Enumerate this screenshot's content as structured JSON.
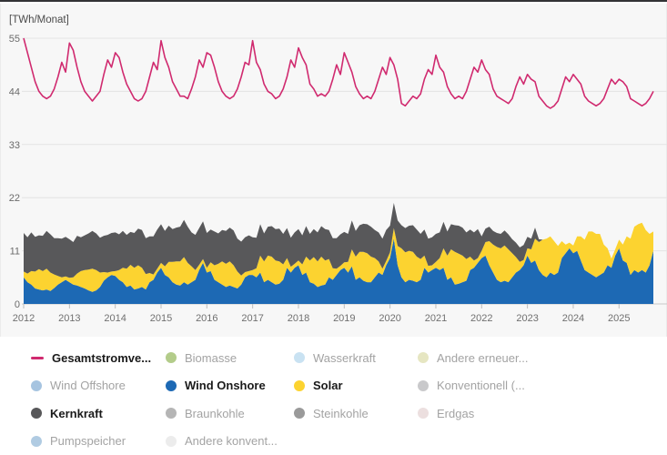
{
  "chart_data": {
    "type": "line+area",
    "unit_label": "[TWh/Monat]",
    "x_monthly_start": "2012-01",
    "x_tick_labels": [
      "2012",
      "2013",
      "2014",
      "2015",
      "2016",
      "2017",
      "2018",
      "2019",
      "2020",
      "2021",
      "2022",
      "2023",
      "2024",
      "2025"
    ],
    "yticks": [
      0,
      11,
      22,
      33,
      44,
      55
    ],
    "ylim": [
      0,
      55
    ],
    "grid": true,
    "legend_position": "bottom",
    "stack_series": [
      {
        "name": "Wind Onshore",
        "color": "#1d69b4",
        "values": [
          5.5,
          4.5,
          4.0,
          3.2,
          3.0,
          2.8,
          3.0,
          2.7,
          3.3,
          4.0,
          4.5,
          5.0,
          4.5,
          4.0,
          3.8,
          3.5,
          3.2,
          2.8,
          2.5,
          2.8,
          3.5,
          4.8,
          5.5,
          6.0,
          5.8,
          5.0,
          4.5,
          3.5,
          3.8,
          3.0,
          3.2,
          3.5,
          3.0,
          4.5,
          5.0,
          6.5,
          7.5,
          6.0,
          5.5,
          4.5,
          4.0,
          3.8,
          4.5,
          4.0,
          4.5,
          5.0,
          7.0,
          8.5,
          6.5,
          6.8,
          5.0,
          4.5,
          4.0,
          3.5,
          3.8,
          3.5,
          3.2,
          4.0,
          5.5,
          6.0,
          6.0,
          5.5,
          6.5,
          4.5,
          5.0,
          4.5,
          4.0,
          4.2,
          5.0,
          7.5,
          6.5,
          7.5,
          8.0,
          6.0,
          6.5,
          4.5,
          4.2,
          3.5,
          3.8,
          4.0,
          5.5,
          5.0,
          6.0,
          7.0,
          7.5,
          6.5,
          7.8,
          5.0,
          5.5,
          4.8,
          4.5,
          4.5,
          5.5,
          6.5,
          6.0,
          8.0,
          9.5,
          13.5,
          8.0,
          5.5,
          4.5,
          5.0,
          4.8,
          4.5,
          5.0,
          7.5,
          6.5,
          7.0,
          7.5,
          7.0,
          7.5,
          5.0,
          5.5,
          4.0,
          4.2,
          4.5,
          4.8,
          7.0,
          7.5,
          8.5,
          9.5,
          10.0,
          8.0,
          6.5,
          5.0,
          4.5,
          4.8,
          4.5,
          5.5,
          6.5,
          7.0,
          8.0,
          10.0,
          8.5,
          9.0,
          7.0,
          6.0,
          5.5,
          6.5,
          6.0,
          6.5,
          9.5,
          10.5,
          11.5,
          10.5,
          11.0,
          9.0,
          7.0,
          6.5,
          6.0,
          5.5,
          6.0,
          6.5,
          8.0,
          7.5,
          10.0,
          11.5,
          9.0,
          8.5,
          6.0,
          7.0,
          6.5,
          7.0,
          6.5,
          8.0,
          11.0
        ]
      },
      {
        "name": "Solar",
        "color": "#fcd330",
        "values": [
          1.2,
          1.8,
          2.8,
          3.5,
          4.2,
          4.0,
          4.3,
          3.8,
          2.8,
          1.8,
          1.0,
          0.7,
          0.9,
          1.5,
          2.5,
          3.3,
          3.8,
          4.3,
          4.8,
          4.2,
          3.0,
          1.8,
          1.0,
          0.7,
          1.0,
          2.0,
          3.0,
          3.8,
          4.3,
          4.5,
          4.8,
          4.0,
          3.2,
          1.9,
          1.1,
          0.8,
          1.0,
          1.8,
          3.2,
          4.2,
          4.8,
          5.0,
          5.2,
          4.5,
          3.3,
          2.0,
          1.1,
          0.8,
          1.0,
          1.8,
          3.0,
          3.8,
          4.8,
          4.8,
          5.0,
          4.5,
          3.5,
          1.9,
          1.1,
          0.8,
          1.0,
          1.9,
          3.5,
          4.3,
          5.0,
          5.3,
          5.0,
          4.6,
          3.2,
          2.0,
          1.2,
          0.8,
          1.0,
          2.2,
          3.3,
          4.5,
          5.5,
          5.3,
          6.0,
          5.0,
          3.8,
          2.4,
          1.3,
          0.9,
          1.1,
          2.2,
          3.5,
          4.8,
          5.3,
          6.0,
          6.0,
          5.3,
          4.0,
          2.3,
          1.3,
          0.9,
          1.2,
          2.2,
          4.0,
          6.0,
          6.2,
          6.0,
          6.0,
          5.3,
          4.3,
          2.5,
          1.4,
          1.0,
          1.2,
          2.5,
          4.0,
          5.0,
          5.8,
          6.8,
          6.2,
          5.5,
          4.5,
          2.8,
          1.5,
          1.0,
          1.5,
          2.8,
          5.0,
          5.8,
          6.8,
          7.0,
          7.3,
          6.8,
          5.0,
          3.2,
          1.7,
          1.1,
          1.5,
          2.8,
          4.5,
          5.8,
          7.3,
          8.0,
          7.5,
          7.0,
          5.5,
          3.5,
          1.8,
          1.2,
          1.6,
          3.0,
          5.0,
          6.3,
          8.5,
          9.0,
          9.0,
          8.5,
          5.8,
          3.5,
          1.9,
          1.3,
          1.8,
          3.3,
          5.5,
          7.5,
          9.0,
          10.0,
          9.8,
          8.8,
          6.5,
          4.0
        ]
      },
      {
        "name": "Kernkraft",
        "color": "#58585a",
        "values": [
          8.0,
          7.5,
          8.0,
          7.2,
          7.0,
          7.3,
          7.8,
          7.9,
          7.5,
          7.8,
          8.0,
          8.2,
          8.0,
          7.3,
          7.8,
          7.0,
          7.2,
          7.5,
          7.8,
          7.6,
          7.2,
          7.5,
          7.8,
          8.0,
          8.0,
          7.4,
          7.6,
          7.0,
          6.8,
          7.2,
          7.6,
          7.8,
          7.4,
          7.6,
          7.9,
          8.1,
          8.0,
          7.3,
          7.5,
          6.8,
          7.0,
          7.2,
          7.7,
          7.5,
          7.0,
          7.3,
          7.6,
          7.8,
          7.2,
          6.8,
          7.0,
          6.3,
          6.5,
          6.8,
          7.0,
          7.2,
          6.8,
          7.0,
          7.2,
          7.4,
          6.8,
          6.3,
          6.5,
          5.8,
          6.0,
          6.3,
          6.5,
          6.8,
          6.3,
          6.2,
          6.0,
          6.5,
          6.5,
          6.0,
          6.3,
          5.5,
          5.8,
          6.0,
          6.3,
          6.5,
          6.0,
          6.2,
          6.3,
          6.5,
          6.3,
          5.8,
          6.0,
          5.3,
          5.5,
          5.8,
          6.0,
          6.2,
          5.8,
          6.0,
          6.2,
          6.4,
          5.5,
          5.2,
          5.3,
          4.8,
          5.0,
          5.2,
          5.5,
          5.6,
          5.2,
          5.4,
          5.6,
          5.8,
          5.8,
          5.3,
          5.5,
          5.0,
          5.2,
          5.5,
          5.8,
          5.8,
          5.5,
          5.6,
          5.8,
          6.0,
          3.0,
          2.8,
          3.0,
          2.8,
          2.9,
          3.0,
          3.1,
          3.1,
          2.9,
          3.0,
          3.0,
          3.1,
          2.4,
          2.2,
          2.3,
          0.6,
          0,
          0,
          0,
          0,
          0,
          0,
          0,
          0,
          0,
          0,
          0,
          0,
          0,
          0,
          0,
          0,
          0,
          0,
          0,
          0,
          0,
          0,
          0,
          0,
          0,
          0,
          0,
          0,
          0,
          0
        ]
      }
    ],
    "line_series": [
      {
        "name": "Gesamtstromverbrauch",
        "color": "#d02a6f",
        "values": [
          55,
          52,
          49,
          46,
          44,
          43,
          42.5,
          43,
          44.5,
          47,
          50,
          48,
          54,
          52.5,
          49,
          46,
          44,
          43,
          42,
          43,
          44,
          47.5,
          50.5,
          49,
          52,
          51,
          48,
          45.5,
          44,
          42.5,
          42,
          42.5,
          44,
          47,
          50,
          48.5,
          54.5,
          51,
          49,
          46,
          44.5,
          43,
          43,
          42.5,
          44.5,
          47,
          50.5,
          49,
          52,
          51.5,
          49,
          46,
          44,
          43,
          42.5,
          43,
          44.5,
          47,
          50,
          49.5,
          54.5,
          50,
          48.5,
          45.5,
          44,
          43.5,
          42.5,
          43,
          44.5,
          47,
          50.5,
          49,
          53,
          51,
          49.5,
          45.5,
          44.5,
          43,
          43.5,
          43,
          44,
          46.5,
          49.5,
          47.5,
          52,
          50,
          48,
          45,
          43.5,
          42.5,
          43,
          42.5,
          44,
          46.5,
          49,
          47.5,
          51,
          49.5,
          46.5,
          41.5,
          41,
          42,
          43,
          42.5,
          43.5,
          46.5,
          48.5,
          47.5,
          51.5,
          49,
          48,
          45,
          43.5,
          42.5,
          43,
          42.5,
          44,
          46.5,
          49,
          48,
          50.5,
          48.5,
          47.5,
          44.5,
          43,
          42.5,
          42,
          41.5,
          42.5,
          45,
          47,
          45.5,
          47.5,
          46.5,
          46,
          43,
          42,
          41,
          40.5,
          41,
          42,
          44.5,
          47,
          46,
          47.5,
          46.5,
          45.5,
          43,
          42,
          41.5,
          41,
          41.5,
          42.5,
          44.5,
          46.5,
          45.5,
          46.5,
          46,
          45,
          42.5,
          42,
          41.5,
          41,
          41.5,
          42.5,
          44
        ]
      }
    ]
  },
  "legend": {
    "items": [
      {
        "label": "Gesamtstromve...",
        "marker": "line",
        "color": "#d02a6f",
        "active": true
      },
      {
        "label": "Biomasse",
        "marker": "circle",
        "color": "#b3cc8a",
        "active": false
      },
      {
        "label": "Wasserkraft",
        "marker": "circle",
        "color": "#c9e2f2",
        "active": false
      },
      {
        "label": "Andere erneuer...",
        "marker": "circle",
        "color": "#e6e6c2",
        "active": false
      },
      {
        "label": "Wind Offshore",
        "marker": "circle",
        "color": "#a6c4e0",
        "active": false
      },
      {
        "label": "Wind Onshore",
        "marker": "circle",
        "color": "#1d69b4",
        "active": true
      },
      {
        "label": "Solar",
        "marker": "circle",
        "color": "#fcd330",
        "active": true
      },
      {
        "label": "Konventionell (...",
        "marker": "circle",
        "color": "#c9c9cb",
        "active": false
      },
      {
        "label": "Kernkraft",
        "marker": "circle",
        "color": "#58585a",
        "active": true
      },
      {
        "label": "Braunkohle",
        "marker": "circle",
        "color": "#b5b5b5",
        "active": false
      },
      {
        "label": "Steinkohle",
        "marker": "circle",
        "color": "#9a9a9a",
        "active": false
      },
      {
        "label": "Erdgas",
        "marker": "circle",
        "color": "#ecdfdf",
        "active": false
      },
      {
        "label": "Pumpspeicher",
        "marker": "circle",
        "color": "#b0cbe2",
        "active": false
      },
      {
        "label": "Andere konvent...",
        "marker": "circle",
        "color": "#ececec",
        "active": false
      }
    ]
  },
  "style": {
    "chart_bg": "#f7f7f7",
    "grid_color": "#e4e4e4",
    "zero_line_color": "#c9c9c9",
    "tick_color": "#bdbdbd"
  }
}
